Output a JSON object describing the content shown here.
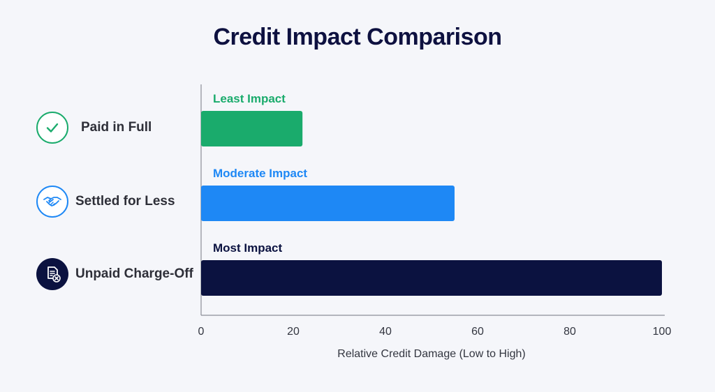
{
  "chart_data": {
    "type": "bar",
    "orientation": "horizontal",
    "title": "Credit Impact Comparison",
    "xlabel": "Relative Credit Damage (Low to High)",
    "ylabel": "",
    "xlim": [
      0,
      100
    ],
    "x_ticks": [
      0,
      20,
      40,
      60,
      80,
      100
    ],
    "grid": false,
    "categories": [
      "Paid in Full",
      "Settled for Less",
      "Unpaid Charge-Off"
    ],
    "values": [
      22,
      55,
      100
    ],
    "bar_labels": [
      "Least Impact",
      "Moderate Impact",
      "Most Impact"
    ],
    "colors": [
      "#1aab6c",
      "#1e88f5",
      "#0b1240"
    ],
    "label_colors": [
      "#1aab6c",
      "#1e88f5",
      "#0b1240"
    ],
    "icons": [
      "check-circle-icon",
      "handshake-icon",
      "document-x-icon"
    ]
  }
}
